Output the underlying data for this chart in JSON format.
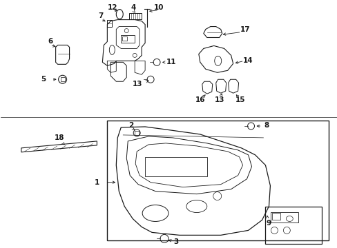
{
  "bg_color": "#ffffff",
  "line_color": "#1a1a1a",
  "figsize": [
    4.89,
    3.6
  ],
  "dpi": 100,
  "border_color": "#333333"
}
